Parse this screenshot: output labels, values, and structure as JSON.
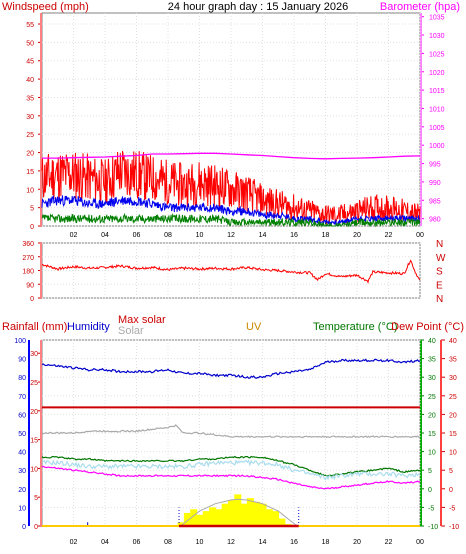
{
  "chart_data": [
    {
      "type": "line",
      "title": "24 hour graph day : 15 January 2026",
      "ylabel": "Windspeed (mph)",
      "y2label": "Barometer (hpa)",
      "x_tick_labels": [
        "02",
        "04",
        "06",
        "08",
        "10",
        "12",
        "14",
        "16",
        "18",
        "20",
        "22",
        "00"
      ],
      "y_ticks": [
        "0",
        "5",
        "10",
        "15",
        "20",
        "25",
        "30",
        "35",
        "40",
        "45",
        "50",
        "55"
      ],
      "ylim": [
        0,
        58
      ],
      "y2_ticks": [
        "980",
        "985",
        "990",
        "995",
        "1000",
        "1005",
        "1010",
        "1015",
        "1020",
        "1025",
        "1030",
        "1035"
      ],
      "y2lim": [
        978,
        1036
      ],
      "grid": true,
      "series": [
        {
          "key": "gust",
          "color": "#ff0000",
          "x": [
            0,
            1,
            2,
            3,
            4,
            5,
            6,
            7,
            8,
            9,
            10,
            11,
            12,
            13,
            14,
            15,
            16,
            17,
            18,
            19,
            20,
            21,
            22,
            23,
            24
          ],
          "values": [
            13,
            14,
            14,
            13,
            12,
            15,
            14,
            13,
            12,
            11,
            12,
            11,
            10,
            9,
            7,
            6,
            5,
            4,
            3,
            3,
            4,
            5,
            5,
            4,
            3
          ]
        },
        {
          "key": "windspeed",
          "color": "#0000ee",
          "x": [
            0,
            1,
            2,
            3,
            4,
            5,
            6,
            7,
            8,
            9,
            10,
            11,
            12,
            13,
            14,
            15,
            16,
            17,
            18,
            19,
            20,
            21,
            22,
            23,
            24
          ],
          "values": [
            6,
            7,
            7,
            6,
            6,
            7,
            7,
            6,
            5,
            5,
            5,
            5,
            4,
            4,
            3,
            3,
            2,
            2,
            1,
            1,
            2,
            2,
            2,
            2,
            2
          ]
        },
        {
          "key": "avgspeed",
          "color": "#008000",
          "x": [
            0,
            1,
            2,
            3,
            4,
            5,
            6,
            7,
            8,
            9,
            10,
            11,
            12,
            13,
            14,
            15,
            16,
            17,
            18,
            19,
            20,
            21,
            22,
            23,
            24
          ],
          "values": [
            2,
            2,
            2,
            2,
            2,
            2,
            2,
            2,
            2,
            2,
            2,
            2,
            1,
            1,
            1,
            1,
            1,
            1,
            0,
            0,
            1,
            1,
            1,
            1,
            1
          ]
        },
        {
          "key": "barometer",
          "color": "#ff00ff",
          "axis": "y2",
          "x": [
            0,
            1,
            2,
            3,
            4,
            5,
            6,
            7,
            8,
            9,
            10,
            11,
            12,
            13,
            14,
            15,
            16,
            17,
            18,
            19,
            20,
            21,
            22,
            23,
            24
          ],
          "values": [
            996.5,
            996.5,
            996.6,
            996.7,
            996.8,
            997.0,
            997.2,
            997.6,
            997.6,
            997.7,
            997.8,
            997.8,
            997.6,
            997.4,
            997.2,
            996.9,
            996.6,
            996.4,
            996.3,
            996.4,
            996.5,
            996.6,
            996.8,
            997.0,
            997.1
          ]
        }
      ]
    },
    {
      "type": "line",
      "title": "",
      "y_ticks": [
        "0",
        "90",
        "180",
        "270",
        "360"
      ],
      "ylim": [
        0,
        360
      ],
      "compass_labels": [
        "N",
        "W",
        "S",
        "E",
        "N"
      ],
      "grid": true,
      "series": [
        {
          "key": "direction",
          "color": "#ff0000",
          "x": [
            0,
            1,
            2,
            3,
            4,
            5,
            6,
            7,
            8,
            9,
            10,
            11,
            12,
            13,
            14,
            15,
            16,
            17,
            17.5,
            18,
            19,
            20,
            20.7,
            21,
            22,
            23,
            23.4,
            23.7,
            24
          ],
          "values": [
            220,
            190,
            205,
            195,
            200,
            210,
            195,
            200,
            185,
            195,
            190,
            195,
            190,
            200,
            185,
            180,
            170,
            165,
            120,
            160,
            140,
            150,
            110,
            170,
            165,
            160,
            250,
            170,
            110
          ]
        }
      ]
    },
    {
      "type": "line",
      "title": "",
      "labels": {
        "rain": "Rainfall (mm)",
        "hum": "Humidity",
        "maxsolar": "Max solar",
        "solar": "Solar",
        "uv": "UV",
        "temp": "Temperature (°C)",
        "dew": "Dew Point (°C)"
      },
      "y_ticks_humidity": [
        "0",
        "10",
        "20",
        "30",
        "40",
        "50",
        "60",
        "70",
        "80",
        "90",
        "100"
      ],
      "y_ticks_rain": [
        "0",
        "5",
        "10",
        "15",
        "20",
        "25",
        "30"
      ],
      "y_ticks_temp": [
        "-10",
        "-5",
        "0",
        "5",
        "10",
        "15",
        "20",
        "25",
        "30",
        "35",
        "40"
      ],
      "y_ticks_dew": [
        "-10",
        "-5",
        "0",
        "5",
        "10",
        "15",
        "20",
        "25",
        "30",
        "35",
        "40"
      ],
      "x_tick_labels": [
        "02",
        "04",
        "06",
        "08",
        "10",
        "12",
        "14",
        "16",
        "18",
        "20",
        "22",
        "00"
      ],
      "grid": true,
      "series": [
        {
          "key": "humidity",
          "color": "#0000cc",
          "axis": "humidity",
          "x": [
            0,
            1,
            2,
            3,
            4,
            5,
            6,
            7,
            8,
            9,
            10,
            11,
            12,
            13,
            14,
            15,
            16,
            17,
            18,
            19,
            20,
            21,
            22,
            23,
            24
          ],
          "values": [
            87,
            86,
            85,
            84,
            84,
            83,
            83,
            83,
            84,
            82,
            82,
            81,
            81,
            80,
            80,
            82,
            83,
            84,
            88,
            89,
            89,
            89,
            89,
            88,
            89
          ]
        },
        {
          "key": "rainfall",
          "color": "#cc0000",
          "axis": "rain",
          "x": [
            0,
            24
          ],
          "values": [
            20.6,
            20.6
          ]
        },
        {
          "key": "solar",
          "color": "#aaaaaa",
          "axis": "temp",
          "x": [
            0,
            1,
            2,
            3,
            4,
            5,
            6,
            7,
            8,
            8.5,
            9,
            10,
            11,
            12,
            13,
            14,
            15,
            16,
            17,
            18,
            19,
            20,
            21,
            22,
            23,
            24
          ],
          "values": [
            15,
            15,
            15,
            15.5,
            15.5,
            15.5,
            15.5,
            16,
            16.5,
            17,
            15,
            15,
            14.5,
            14,
            14,
            14,
            14,
            14,
            14,
            14,
            14,
            14,
            14,
            14,
            14,
            14
          ]
        },
        {
          "key": "temperature",
          "color": "#007700",
          "axis": "temp",
          "x": [
            0,
            1,
            2,
            3,
            4,
            5,
            6,
            7,
            8,
            9,
            10,
            11,
            12,
            13,
            14,
            15,
            16,
            17,
            18,
            19,
            20,
            21,
            22,
            23,
            24
          ],
          "values": [
            8.5,
            8.5,
            8,
            8,
            7.5,
            7.5,
            7.5,
            7.5,
            7.5,
            7.5,
            8,
            8,
            8.5,
            8.5,
            8.5,
            7.5,
            6.5,
            5,
            3.5,
            4,
            4.5,
            5,
            5.5,
            4.5,
            5
          ]
        },
        {
          "key": "apptemp",
          "color": "#aaddee",
          "axis": "temp",
          "x": [
            0,
            1,
            2,
            3,
            4,
            5,
            6,
            7,
            8,
            9,
            10,
            11,
            12,
            13,
            14,
            15,
            16,
            17,
            18,
            19,
            20,
            21,
            22,
            23,
            24
          ],
          "values": [
            7,
            7,
            6.5,
            6,
            6,
            6,
            6,
            6,
            6,
            6,
            6.5,
            7,
            7,
            7,
            7,
            6.5,
            5,
            4,
            3,
            3.5,
            4,
            4,
            4,
            3.5,
            4
          ]
        },
        {
          "key": "dewpoint",
          "color": "#ff00ff",
          "axis": "temp",
          "x": [
            0,
            1,
            2,
            3,
            4,
            5,
            6,
            7,
            8,
            9,
            10,
            11,
            12,
            13,
            14,
            15,
            16,
            17,
            18,
            19,
            20,
            21,
            22,
            23,
            24
          ],
          "values": [
            6,
            5.5,
            5,
            4.5,
            4,
            3.5,
            3.5,
            3.5,
            3.5,
            3.5,
            3.5,
            3.5,
            3.5,
            3.5,
            3,
            2.5,
            1.5,
            0.5,
            0,
            0.5,
            1,
            1.5,
            2,
            1.5,
            2
          ]
        },
        {
          "key": "uv",
          "color": "#ffcc00",
          "axis": "temp",
          "x": [
            0,
            24
          ],
          "values": [
            -10,
            -10
          ]
        }
      ],
      "solar_bars": {
        "color": "#ffff00",
        "axis": "temp",
        "x": [
          8.8,
          9.2,
          9.6,
          10,
          10.4,
          10.8,
          11.2,
          11.6,
          12,
          12.4,
          12.8,
          13.2,
          13.6,
          14,
          14.4,
          14.8,
          15.2,
          15.6
        ],
        "values": [
          -9,
          -6.5,
          -5.5,
          -7,
          -6,
          -5,
          -5.5,
          -4,
          -3,
          -1.5,
          -4,
          -2.5,
          -3.5,
          -4,
          -5.5,
          -6,
          -8,
          -9.5
        ]
      },
      "max_solar_curve": {
        "color": "#aaaaaa",
        "x": [
          8.8,
          10,
          11,
          12,
          12.4,
          13,
          14,
          15,
          16.2
        ],
        "values": [
          -10,
          -6,
          -4,
          -3,
          -2.8,
          -3,
          -4,
          -6,
          -10
        ]
      },
      "sunrise_x": 8.7,
      "sunset_x": 16.3,
      "day_band": {
        "color": "#cc0000",
        "from": 8.7,
        "to": 16.3
      }
    }
  ]
}
